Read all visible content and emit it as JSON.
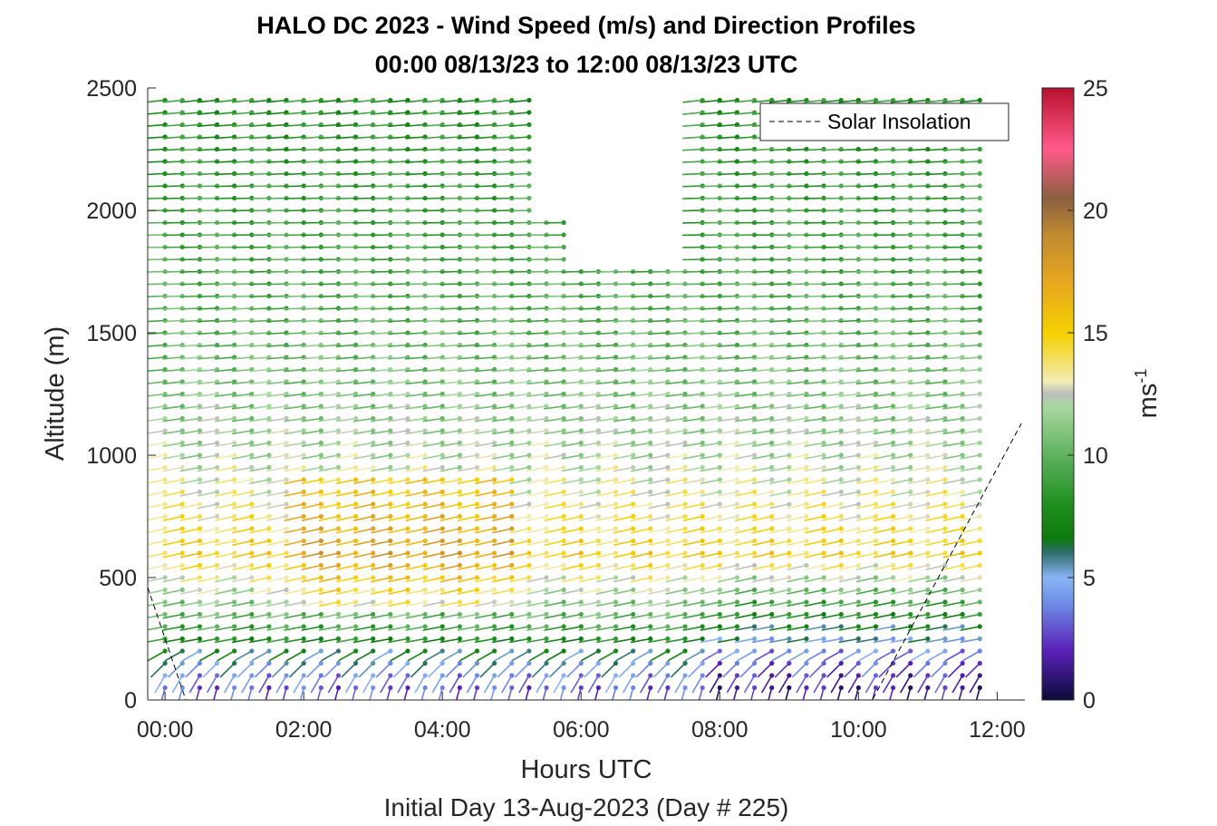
{
  "chart_data": {
    "type": "wind-barb-profile",
    "title_line1": "HALO DC 2023 - Wind Speed (m/s) and Direction Profiles",
    "title_line2": "00:00 08/13/23 to 12:00 08/13/23  UTC",
    "xlabel": "Hours UTC",
    "ylabel": "Altitude (m)",
    "subtitle": "Initial Day 13-Aug-2023 (Day # 225)",
    "xlim": [
      -0.25,
      12.4
    ],
    "ylim": [
      0,
      2500
    ],
    "x_ticks": [
      {
        "value": 0,
        "label": "00:00"
      },
      {
        "value": 2,
        "label": "02:00"
      },
      {
        "value": 4,
        "label": "04:00"
      },
      {
        "value": 6,
        "label": "06:00"
      },
      {
        "value": 8,
        "label": "08:00"
      },
      {
        "value": 10,
        "label": "10:00"
      },
      {
        "value": 12,
        "label": "12:00"
      }
    ],
    "y_ticks": [
      {
        "value": 0,
        "label": "0"
      },
      {
        "value": 500,
        "label": "500"
      },
      {
        "value": 1000,
        "label": "1000"
      },
      {
        "value": 1500,
        "label": "1500"
      },
      {
        "value": 2000,
        "label": "2000"
      },
      {
        "value": 2500,
        "label": "2500"
      }
    ],
    "colorbar": {
      "label": "ms-1",
      "label_base": "ms",
      "label_exponent": "-1",
      "range": [
        0,
        25
      ],
      "ticks": [
        {
          "value": 0,
          "label": "0"
        },
        {
          "value": 5,
          "label": "5"
        },
        {
          "value": 10,
          "label": "10"
        },
        {
          "value": 15,
          "label": "15"
        },
        {
          "value": 20,
          "label": "20"
        },
        {
          "value": 25,
          "label": "25"
        }
      ],
      "stops": [
        {
          "v": 0,
          "c": "#0b0b3b"
        },
        {
          "v": 2,
          "c": "#5a20b8"
        },
        {
          "v": 4,
          "c": "#6f8fe8"
        },
        {
          "v": 5,
          "c": "#8ab4f5"
        },
        {
          "v": 6,
          "c": "#2f6f6f"
        },
        {
          "v": 6.6,
          "c": "#0d7a0d"
        },
        {
          "v": 8,
          "c": "#1f8f1f"
        },
        {
          "v": 10,
          "c": "#5fb25f"
        },
        {
          "v": 12,
          "c": "#a8d8a0"
        },
        {
          "v": 12.5,
          "c": "#bdbdbd"
        },
        {
          "v": 13,
          "c": "#f2ecb4"
        },
        {
          "v": 15,
          "c": "#f5d000"
        },
        {
          "v": 17,
          "c": "#e8a820"
        },
        {
          "v": 19,
          "c": "#c08a30"
        },
        {
          "v": 20.5,
          "c": "#8a6040"
        },
        {
          "v": 22.5,
          "c": "#ff5a8a"
        },
        {
          "v": 25,
          "c": "#b8102e"
        }
      ]
    },
    "legend": {
      "label": "Solar Insolation",
      "position": "top-right",
      "line_style": "dashed"
    },
    "profiles": {
      "times_hours": [
        0,
        0.25,
        0.5,
        0.75,
        1,
        1.25,
        1.5,
        1.75,
        2,
        2.25,
        2.5,
        2.75,
        3,
        3.25,
        3.5,
        3.75,
        4,
        4.25,
        4.5,
        4.75,
        5,
        5.25,
        5.5,
        5.75,
        6,
        6.25,
        6.5,
        6.75,
        7,
        7.25,
        7.5,
        7.75,
        8,
        8.25,
        8.5,
        8.75,
        9,
        9.25,
        9.5,
        9.75,
        10,
        10.25,
        10.5,
        10.75,
        11,
        11.25,
        11.5,
        11.75
      ],
      "altitude_step_m": 50,
      "altitude_min_m": 50,
      "altitude_max_m": 2450,
      "speed_estimate_bands_m_s": [
        {
          "altitude": 50,
          "value": 3
        },
        {
          "altitude": 150,
          "value": 5
        },
        {
          "altitude": 300,
          "value": 9
        },
        {
          "altitude": 600,
          "value": 15
        },
        {
          "altitude": 1000,
          "value": 12
        },
        {
          "altitude": 1500,
          "value": 10
        },
        {
          "altitude": 2000,
          "value": 9
        },
        {
          "altitude": 2450,
          "value": 8
        }
      ],
      "direction_note": "mostly westerly flow veering to southerly near the surface",
      "data_gaps": [
        {
          "time_start": 5.5,
          "time_end": 6.0,
          "altitude_min": 2000
        },
        {
          "time_start": 6.0,
          "time_end": 7.75,
          "altitude_min": 1800
        }
      ]
    },
    "solar_insolation_dashed": [
      {
        "x": -0.25,
        "y": 460
      },
      {
        "x": 0.3,
        "y": 0
      },
      {
        "x": 10.2,
        "y": 0
      },
      {
        "x": 12.35,
        "y": 1130
      }
    ]
  }
}
